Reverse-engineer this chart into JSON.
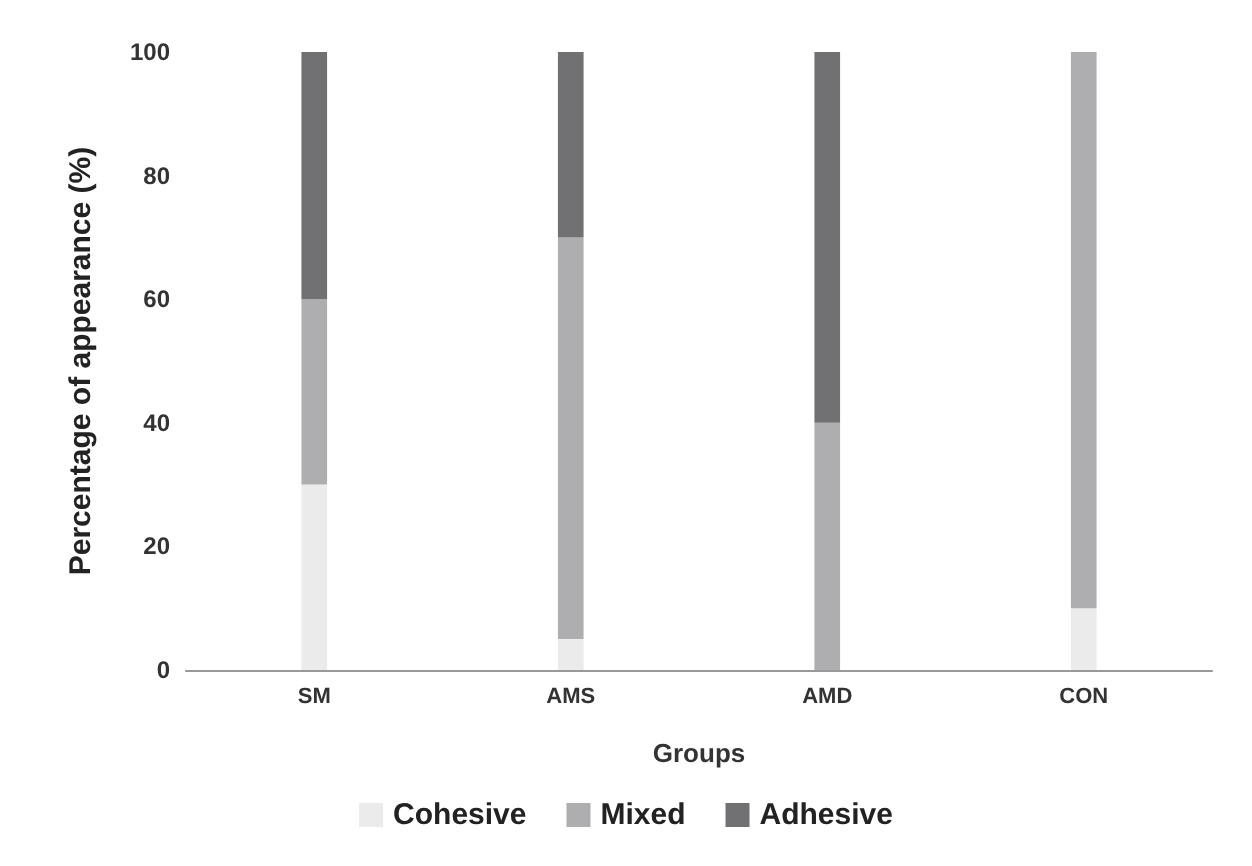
{
  "chart_data": {
    "type": "bar",
    "stacked": true,
    "categories": [
      "SM",
      "AMS",
      "AMD",
      "CON"
    ],
    "series": [
      {
        "name": "Cohesive",
        "color": "#ebebeb",
        "values": [
          30,
          5,
          0,
          10
        ]
      },
      {
        "name": "Mixed",
        "color": "#aeaeb0",
        "values": [
          30,
          65,
          40,
          90
        ]
      },
      {
        "name": "Adhesive",
        "color": "#717174",
        "values": [
          40,
          30,
          60,
          0
        ]
      }
    ],
    "xlabel": "Groups",
    "ylabel": "Percentage of appearance (%)",
    "ylim": [
      0,
      100
    ],
    "yticks": [
      0,
      20,
      40,
      60,
      80,
      100
    ],
    "grid": false,
    "legend": "bottom"
  }
}
